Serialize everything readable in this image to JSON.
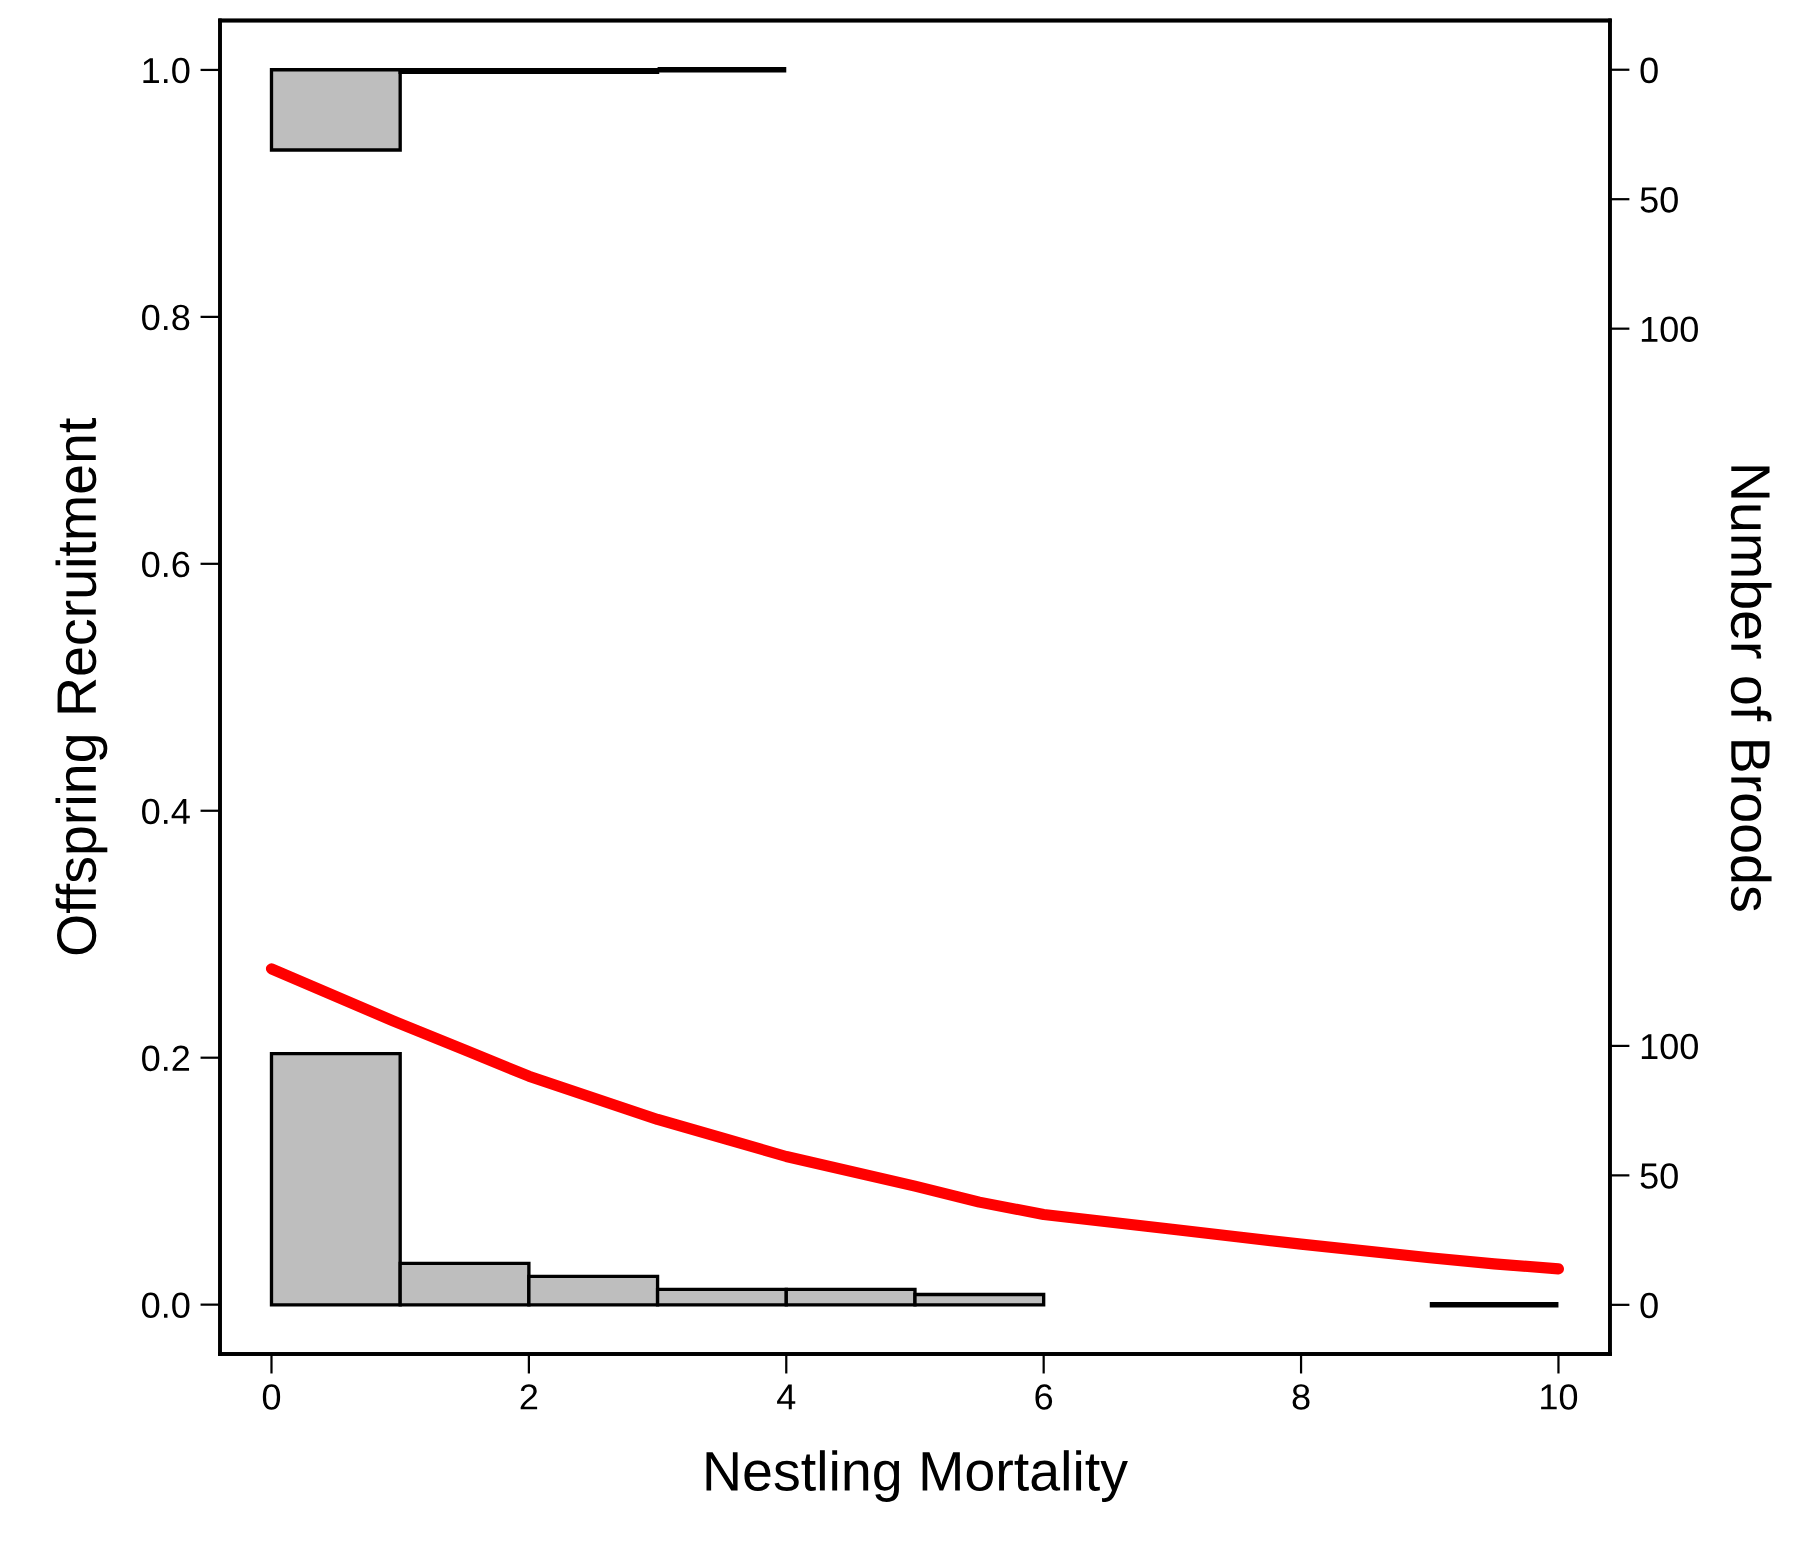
{
  "chart_data": {
    "type": "histogram",
    "xlabel": "Nestling Mortality",
    "ylabel": "Offspring Recruitment",
    "y2label": "Number of Broods",
    "bins": [
      0,
      1,
      2,
      3,
      4,
      5,
      6,
      7,
      8,
      9,
      10
    ],
    "xlim": [
      -0.4,
      10.4
    ],
    "xticks": [
      0,
      2,
      4,
      6,
      8,
      10
    ],
    "ylim": [
      -0.04,
      1.04
    ],
    "yticks": [
      {
        "value": 0,
        "label": "0.0"
      },
      {
        "value": 0.2,
        "label": "0.2"
      },
      {
        "value": 0.4,
        "label": "0.4"
      },
      {
        "value": 0.6,
        "label": "0.6"
      },
      {
        "value": 0.8,
        "label": "0.8"
      },
      {
        "value": 1,
        "label": "1.0"
      }
    ],
    "y2lim": [
      -19,
      496
    ],
    "y2ticks": [
      0,
      50,
      100
    ],
    "y3lim": [
      496,
      -19
    ],
    "y3ticks": [
      0,
      50,
      100
    ],
    "series": [
      {
        "axis": "y2",
        "colors": [
          "#bebebe",
          "#bebebe",
          "#bebebe",
          "#bebebe",
          "#bebebe",
          "#bebebe",
          null,
          null,
          null,
          "#000000"
        ],
        "values": [
          97,
          16,
          11,
          6,
          6,
          4,
          null,
          null,
          null,
          0
        ]
      },
      {
        "axis": "y3",
        "colors": [
          "#bebebe",
          "#bebebe",
          "#bebebe",
          "#000000",
          null,
          null,
          null,
          null,
          null,
          null
        ],
        "values": [
          31,
          1,
          1,
          0,
          null,
          null,
          null,
          null,
          null,
          null
        ]
      },
      {
        "type": "line",
        "color": "#ff0000",
        "x": [
          0,
          0.94,
          1.51,
          2,
          3,
          3.5,
          4,
          5,
          5.5,
          6,
          7,
          7.5,
          8,
          9,
          9.5,
          10
        ],
        "values": [
          0.272,
          0.23,
          0.206,
          0.185,
          0.15,
          0.135,
          0.12,
          0.096,
          0.083,
          0.073,
          0.061,
          0.055,
          0.049,
          0.038,
          0.033,
          0.029
        ]
      }
    ]
  }
}
